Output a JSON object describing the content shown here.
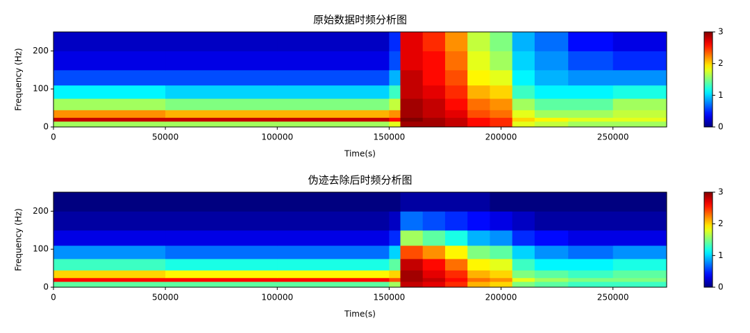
{
  "chart_data": [
    {
      "type": "heatmap",
      "title": "原始数据时频分析图",
      "xlabel": "Time(s)",
      "ylabel": "Frequency (Hz)",
      "colormap": "jet",
      "xlim": [
        0,
        274000
      ],
      "ylim": [
        0,
        250
      ],
      "clim": [
        0,
        3
      ],
      "xticks": [
        0,
        50000,
        100000,
        150000,
        200000,
        250000
      ],
      "yticks": [
        0,
        100,
        200
      ],
      "cticks": [
        0,
        1,
        2,
        3
      ],
      "time_bins": [
        0,
        50000,
        100000,
        150000,
        155000,
        165000,
        175000,
        185000,
        195000,
        205000,
        215000,
        230000,
        250000,
        274000
      ],
      "freq_bins": [
        0,
        15,
        25,
        45,
        75,
        110,
        150,
        200,
        250
      ],
      "values": [
        [
          1.6,
          1.6,
          1.6,
          1.8,
          2.9,
          2.9,
          2.8,
          2.6,
          2.5,
          1.8,
          1.7,
          1.6,
          1.6
        ],
        [
          2.8,
          2.8,
          2.8,
          2.6,
          3.0,
          2.9,
          2.8,
          2.6,
          2.5,
          2.0,
          1.9,
          1.8,
          1.8
        ],
        [
          2.2,
          2.1,
          2.1,
          2.2,
          2.9,
          2.8,
          2.7,
          2.4,
          2.3,
          1.8,
          1.6,
          1.6,
          1.7
        ],
        [
          1.6,
          1.5,
          1.5,
          1.7,
          2.9,
          2.8,
          2.6,
          2.3,
          2.2,
          1.6,
          1.4,
          1.4,
          1.6
        ],
        [
          1.1,
          1.0,
          1.0,
          1.3,
          2.8,
          2.7,
          2.5,
          2.1,
          2.0,
          1.3,
          1.1,
          1.1,
          1.2
        ],
        [
          0.6,
          0.6,
          0.6,
          0.9,
          2.8,
          2.6,
          2.4,
          1.9,
          1.8,
          1.1,
          0.9,
          0.8,
          0.8
        ],
        [
          0.3,
          0.3,
          0.3,
          0.6,
          2.7,
          2.6,
          2.3,
          1.8,
          1.6,
          1.0,
          0.8,
          0.6,
          0.5
        ],
        [
          0.2,
          0.2,
          0.2,
          0.5,
          2.7,
          2.5,
          2.2,
          1.7,
          1.5,
          0.9,
          0.7,
          0.4,
          0.3
        ]
      ]
    },
    {
      "type": "heatmap",
      "title": "伪迹去除后时频分析图",
      "xlabel": "Time(s)",
      "ylabel": "Frequency (Hz)",
      "colormap": "jet",
      "xlim": [
        0,
        274000
      ],
      "ylim": [
        0,
        250
      ],
      "clim": [
        0,
        3
      ],
      "xticks": [
        0,
        50000,
        100000,
        150000,
        200000,
        250000
      ],
      "yticks": [
        0,
        100,
        200
      ],
      "cticks": [
        0,
        1,
        2,
        3
      ],
      "time_bins": [
        0,
        50000,
        100000,
        150000,
        155000,
        165000,
        175000,
        185000,
        195000,
        205000,
        215000,
        230000,
        250000,
        274000
      ],
      "freq_bins": [
        0,
        15,
        25,
        45,
        75,
        110,
        150,
        200,
        250
      ],
      "values": [
        [
          1.4,
          1.4,
          1.4,
          1.6,
          2.8,
          2.7,
          2.5,
          2.1,
          2.0,
          1.5,
          1.4,
          1.3,
          1.3
        ],
        [
          2.6,
          2.6,
          2.6,
          2.4,
          2.9,
          2.8,
          2.6,
          2.3,
          2.2,
          1.8,
          1.6,
          1.5,
          1.5
        ],
        [
          2.0,
          1.9,
          1.9,
          2.0,
          2.9,
          2.7,
          2.5,
          2.1,
          2.0,
          1.5,
          1.4,
          1.3,
          1.4
        ],
        [
          1.3,
          1.2,
          1.2,
          1.4,
          2.8,
          2.6,
          2.3,
          1.9,
          1.8,
          1.3,
          1.1,
          1.1,
          1.2
        ],
        [
          0.8,
          0.7,
          0.7,
          1.0,
          2.4,
          2.2,
          1.9,
          1.5,
          1.4,
          1.0,
          0.8,
          0.7,
          0.8
        ],
        [
          0.3,
          0.3,
          0.3,
          0.5,
          1.6,
          1.4,
          1.2,
          0.9,
          0.8,
          0.5,
          0.4,
          0.3,
          0.3
        ],
        [
          0.1,
          0.1,
          0.1,
          0.2,
          0.7,
          0.6,
          0.5,
          0.4,
          0.3,
          0.2,
          0.1,
          0.1,
          0.1
        ],
        [
          0.0,
          0.0,
          0.0,
          0.0,
          0.1,
          0.1,
          0.1,
          0.1,
          0.0,
          0.0,
          0.0,
          0.0,
          0.0
        ]
      ]
    }
  ]
}
